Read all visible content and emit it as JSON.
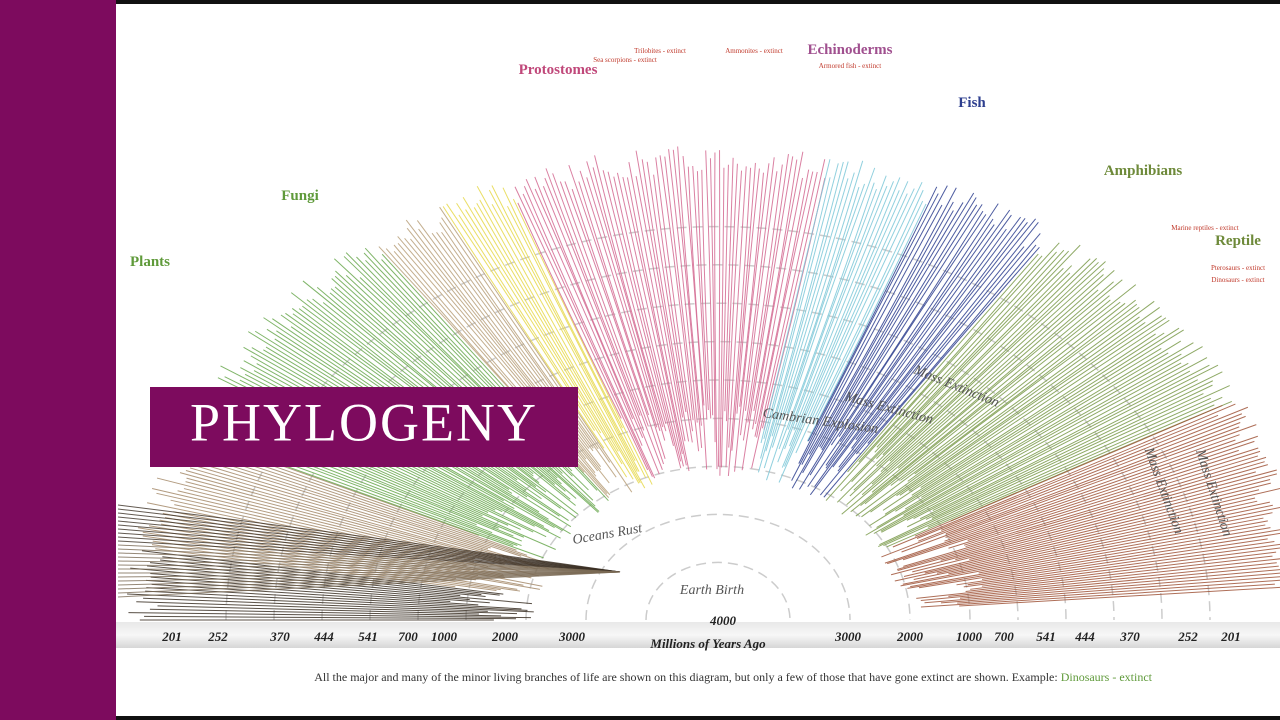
{
  "title": "PHYLOGENY",
  "groups": [
    {
      "label": "Plants",
      "color": "#5f9a3a"
    },
    {
      "label": "Fungi",
      "color": "#5f9a3a"
    },
    {
      "label": "Protostomes",
      "color": "#c0487a"
    },
    {
      "label": "Echinoderms",
      "color": "#a0508f"
    },
    {
      "label": "Fish",
      "color": "#2e3f8f"
    },
    {
      "label": "Amphibians",
      "color": "#6e8a3a"
    },
    {
      "label": "Reptile",
      "color": "#6e8a3a"
    }
  ],
  "extinct_labels": [
    "Trilobites - extinct",
    "Sea scorpions - extinct",
    "Ammonites - extinct",
    "Armored fish - extinct",
    "Marine reptiles - extinct",
    "Pterosaurs - extinct",
    "Dinosaurs - extinct"
  ],
  "events": [
    "Earth Birth",
    "Oceans Rust",
    "Cambrian Explosion",
    "Mass Extinction",
    "Mass Extinction",
    "Mass Extinction",
    "Mass Extinction"
  ],
  "axis": {
    "label": "Millions of Years Ago",
    "center": "4000",
    "left": [
      "201",
      "252",
      "370",
      "444",
      "541",
      "700",
      "1000",
      "2000",
      "3000"
    ],
    "right": [
      "3000",
      "2000",
      "1000",
      "700",
      "541",
      "444",
      "370",
      "252",
      "201"
    ]
  },
  "caption": {
    "text": "All the major and many of the minor living branches of life are shown on this diagram, but only a few of those that have gone extinct are shown. Example:",
    "example": "Dinosaurs - extinct"
  }
}
